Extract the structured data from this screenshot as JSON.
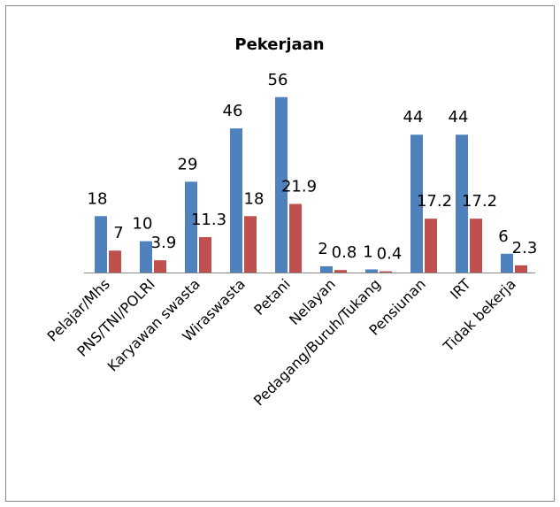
{
  "chart_data": {
    "type": "bar",
    "title": "Pekerjaan",
    "categories": [
      "Pelajar/Mhs",
      "PNS/TNI/POLRI",
      "Karyawan swasta",
      "Wiraswasta",
      "Petani",
      "Nelayan",
      "Pedagang/Buruh/Tukang",
      "Pensiunan",
      "IRT",
      "Tidak bekerja"
    ],
    "series": [
      {
        "color": "#4f81bd",
        "values": [
          18,
          10,
          29,
          46,
          56,
          2,
          1,
          44,
          44,
          6
        ]
      },
      {
        "color": "#c0504d",
        "values": [
          7,
          3.9,
          11.3,
          18,
          21.9,
          0.8,
          0.4,
          17.2,
          17.2,
          2.3
        ]
      }
    ]
  }
}
